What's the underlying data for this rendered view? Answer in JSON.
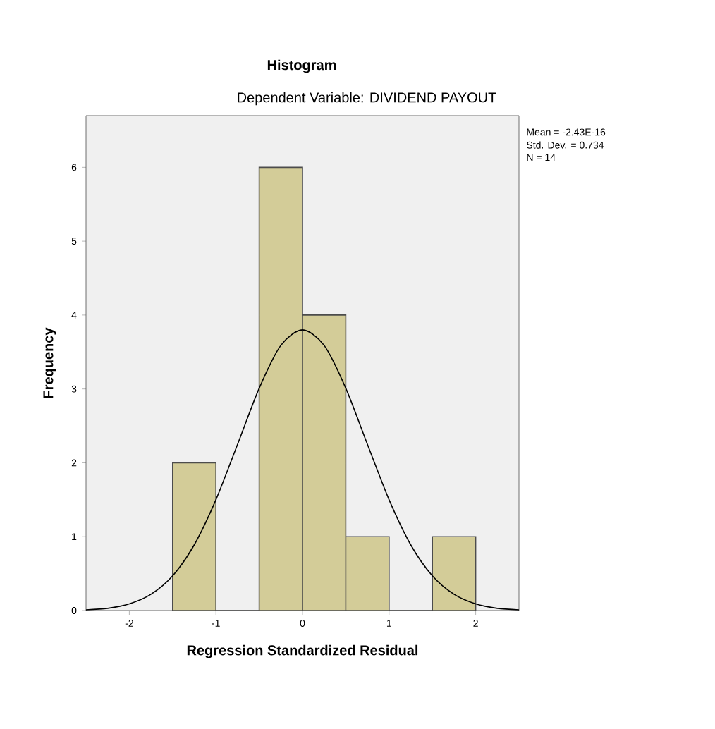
{
  "chart_data": {
    "type": "histogram",
    "title": "Histogram",
    "subtitle": "Dependent Variable: DIVIDEND PAYOUT",
    "xlabel": "Regression Standardized Residual",
    "ylabel": "Frequency",
    "bins": [
      -1.5,
      -1,
      -0.5,
      0,
      0.5,
      1,
      1.5,
      2
    ],
    "values": [
      2,
      0,
      6,
      4,
      1,
      0,
      1
    ],
    "color": "#d3cc98",
    "series": [
      {
        "type": "line",
        "color": "#000000",
        "x": [
          -2.5,
          -2.25,
          -2,
          -1.75,
          -1.5,
          -1.25,
          -1,
          -0.75,
          -0.5,
          -0.25,
          0,
          0.25,
          0.5,
          0.75,
          1,
          1.25,
          1.5,
          1.75,
          2,
          2.25,
          2.5
        ],
        "values": [
          0.01,
          0.03,
          0.09,
          0.22,
          0.47,
          0.89,
          1.5,
          2.25,
          3.01,
          3.59,
          3.8,
          3.59,
          3.01,
          2.25,
          1.5,
          0.89,
          0.47,
          0.22,
          0.09,
          0.03,
          0.01
        ]
      }
    ],
    "xlim": [
      -2.5,
      2.5
    ],
    "ylim": [
      0,
      6.7
    ],
    "xticks": [
      -2,
      -1,
      0,
      1,
      2
    ],
    "yticks": [
      0,
      1,
      2,
      3,
      4,
      5,
      6
    ],
    "annotations": [
      "Mean = -2.43E-16",
      "Std. Dev. = 0.734",
      "N = 14"
    ]
  }
}
